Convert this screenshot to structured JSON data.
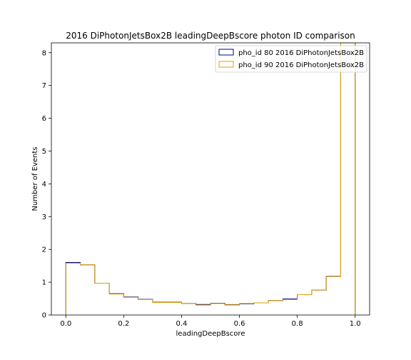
{
  "chart_data": {
    "type": "step-histogram",
    "title": "2016 DiPhotonJetsBox2B leadingDeepBscore photon ID comparison",
    "xlabel": "leadingDeepBscore",
    "ylabel": "Number of Events",
    "xlim": [
      -0.05,
      1.05
    ],
    "ylim": [
      0,
      8.3
    ],
    "xticks": [
      0.0,
      0.2,
      0.4,
      0.6,
      0.8,
      1.0
    ],
    "xtick_labels": [
      "0.0",
      "0.2",
      "0.4",
      "0.6",
      "0.8",
      "1.0"
    ],
    "yticks": [
      0,
      1,
      2,
      3,
      4,
      5,
      6,
      7,
      8
    ],
    "ytick_labels": [
      "0",
      "1",
      "2",
      "3",
      "4",
      "5",
      "6",
      "7",
      "8"
    ],
    "bin_edges": [
      0.0,
      0.05,
      0.1,
      0.15,
      0.2,
      0.25,
      0.3,
      0.35,
      0.4,
      0.45,
      0.5,
      0.55,
      0.6,
      0.65,
      0.7,
      0.75,
      0.8,
      0.85,
      0.9,
      0.95,
      1.0
    ],
    "legend_position": "upper right",
    "series": [
      {
        "name": "pho_id 80 2016 DiPhotonJetsBox2B",
        "color": "#00008b",
        "values": [
          1.6,
          1.53,
          0.97,
          0.65,
          0.55,
          0.48,
          0.39,
          0.39,
          0.35,
          0.31,
          0.36,
          0.31,
          0.34,
          0.37,
          0.44,
          0.49,
          0.62,
          0.76,
          1.18,
          8.3
        ]
      },
      {
        "name": "pho_id 90 2016 DiPhotonJetsBox2B",
        "color": "#e0a000",
        "values": [
          1.58,
          1.53,
          0.97,
          0.64,
          0.54,
          0.47,
          0.38,
          0.38,
          0.35,
          0.33,
          0.35,
          0.32,
          0.35,
          0.37,
          0.44,
          0.47,
          0.62,
          0.76,
          1.17,
          8.3
        ]
      }
    ]
  }
}
